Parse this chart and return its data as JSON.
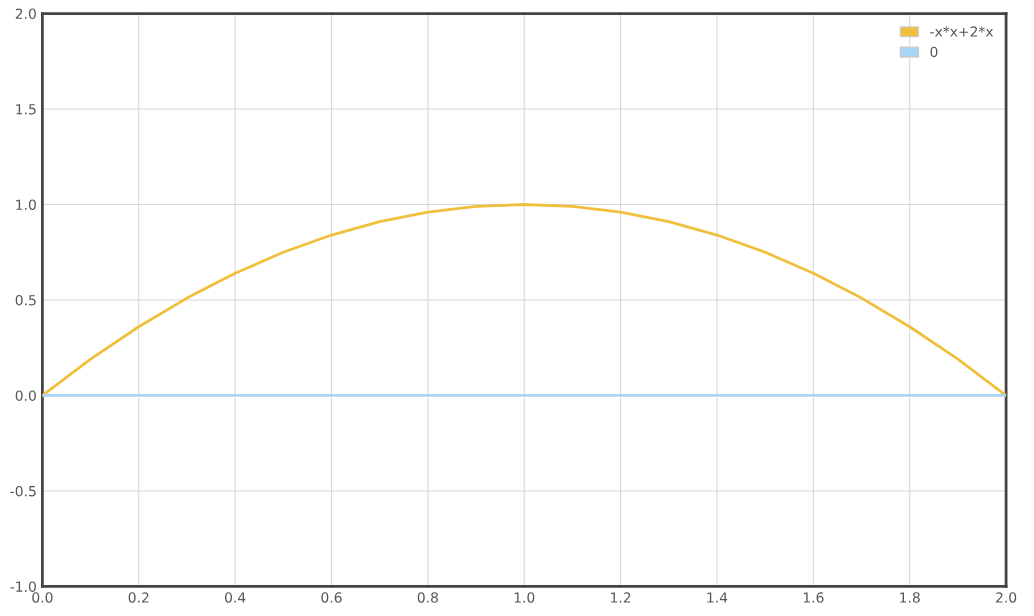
{
  "chart_data": {
    "type": "line",
    "x": [
      0,
      0.1,
      0.2,
      0.3,
      0.4,
      0.5,
      0.6,
      0.7,
      0.8,
      0.9,
      1.0,
      1.1,
      1.2,
      1.3,
      1.4,
      1.5,
      1.6,
      1.7,
      1.8,
      1.9,
      2.0
    ],
    "series": [
      {
        "name": "-x*x+2*x",
        "color": "#f0c03c",
        "values": [
          0,
          0.19,
          0.36,
          0.51,
          0.64,
          0.75,
          0.84,
          0.91,
          0.96,
          0.99,
          1.0,
          0.99,
          0.96,
          0.91,
          0.84,
          0.75,
          0.64,
          0.51,
          0.36,
          0.19,
          0
        ]
      },
      {
        "name": "0",
        "color": "#a8d4f5",
        "values": [
          0,
          0,
          0,
          0,
          0,
          0,
          0,
          0,
          0,
          0,
          0,
          0,
          0,
          0,
          0,
          0,
          0,
          0,
          0,
          0,
          0
        ]
      }
    ],
    "xlim": [
      0,
      2
    ],
    "ylim": [
      -1,
      2
    ],
    "xticks": [
      {
        "value": 0,
        "label": "0.0"
      },
      {
        "value": 0.2,
        "label": "0.2"
      },
      {
        "value": 0.4,
        "label": "0.4"
      },
      {
        "value": 0.6,
        "label": "0.6"
      },
      {
        "value": 0.8,
        "label": "0.8"
      },
      {
        "value": 1,
        "label": "1.0"
      },
      {
        "value": 1.2,
        "label": "1.2"
      },
      {
        "value": 1.4,
        "label": "1.4"
      },
      {
        "value": 1.6,
        "label": "1.6"
      },
      {
        "value": 1.8,
        "label": "1.8"
      },
      {
        "value": 2,
        "label": "2.0"
      }
    ],
    "yticks": [
      {
        "value": -1,
        "label": "-1.0"
      },
      {
        "value": -0.5,
        "label": "-0.5"
      },
      {
        "value": 0,
        "label": "0.0"
      },
      {
        "value": 0.5,
        "label": "0.5"
      },
      {
        "value": 1,
        "label": "1.0"
      },
      {
        "value": 1.5,
        "label": "1.5"
      },
      {
        "value": 2,
        "label": "2.0"
      }
    ],
    "grid": true,
    "legend": "top right",
    "marker": "none",
    "line_style": "solid"
  }
}
